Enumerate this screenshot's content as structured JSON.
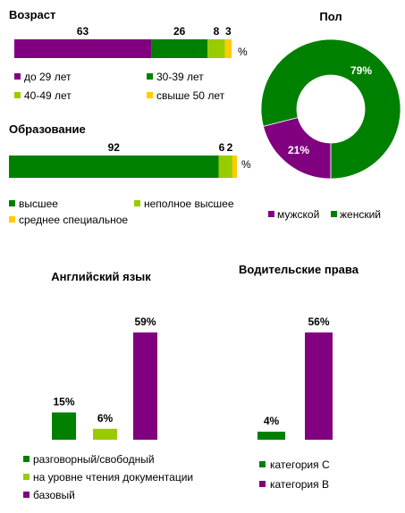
{
  "colors": {
    "purple": "#800080",
    "green": "#008000",
    "lightgreen": "#99cc00",
    "yellow": "#ffcc00",
    "text": "#000000"
  },
  "chart_data": [
    {
      "id": "age",
      "type": "bar",
      "stacked": true,
      "orientation": "horizontal",
      "title": "Возраст",
      "unit": "%",
      "series": [
        {
          "name": "до 29 лет",
          "value": 63,
          "color": "purple"
        },
        {
          "name": "30-39 лет",
          "value": 26,
          "color": "green"
        },
        {
          "name": "40-49 лет",
          "value": 8,
          "color": "lightgreen"
        },
        {
          "name": "свыше 50 лет",
          "value": 3,
          "color": "yellow"
        }
      ]
    },
    {
      "id": "education",
      "type": "bar",
      "stacked": true,
      "orientation": "horizontal",
      "title": "Образование",
      "unit": "%",
      "series": [
        {
          "name": "высшее",
          "value": 92,
          "color": "green"
        },
        {
          "name": "неполное высшее",
          "value": 6,
          "color": "lightgreen"
        },
        {
          "name": "среднее специальное",
          "value": 2,
          "color": "yellow"
        }
      ]
    },
    {
      "id": "gender",
      "type": "pie",
      "donut": true,
      "title": "Пол",
      "series": [
        {
          "name": "мужской",
          "value": 21,
          "label": "21%",
          "color": "purple"
        },
        {
          "name": "женский",
          "value": 79,
          "label": "79%",
          "color": "green"
        }
      ]
    },
    {
      "id": "english",
      "type": "bar",
      "title": "Английский язык",
      "ylim": [
        0,
        59
      ],
      "series": [
        {
          "name": "разговорный/свободный",
          "value": 15,
          "label": "15%",
          "color": "green"
        },
        {
          "name": "на уровне чтения документации",
          "value": 6,
          "label": "6%",
          "color": "lightgreen"
        },
        {
          "name": "базовый",
          "value": 59,
          "label": "59%",
          "color": "purple"
        }
      ]
    },
    {
      "id": "license",
      "type": "bar",
      "title": "Водительские права",
      "ylim": [
        0,
        56
      ],
      "series": [
        {
          "name": "категория С",
          "value": 4,
          "label": "4%",
          "color": "green"
        },
        {
          "name": "категория В",
          "value": 56,
          "label": "56%",
          "color": "purple"
        }
      ]
    }
  ]
}
